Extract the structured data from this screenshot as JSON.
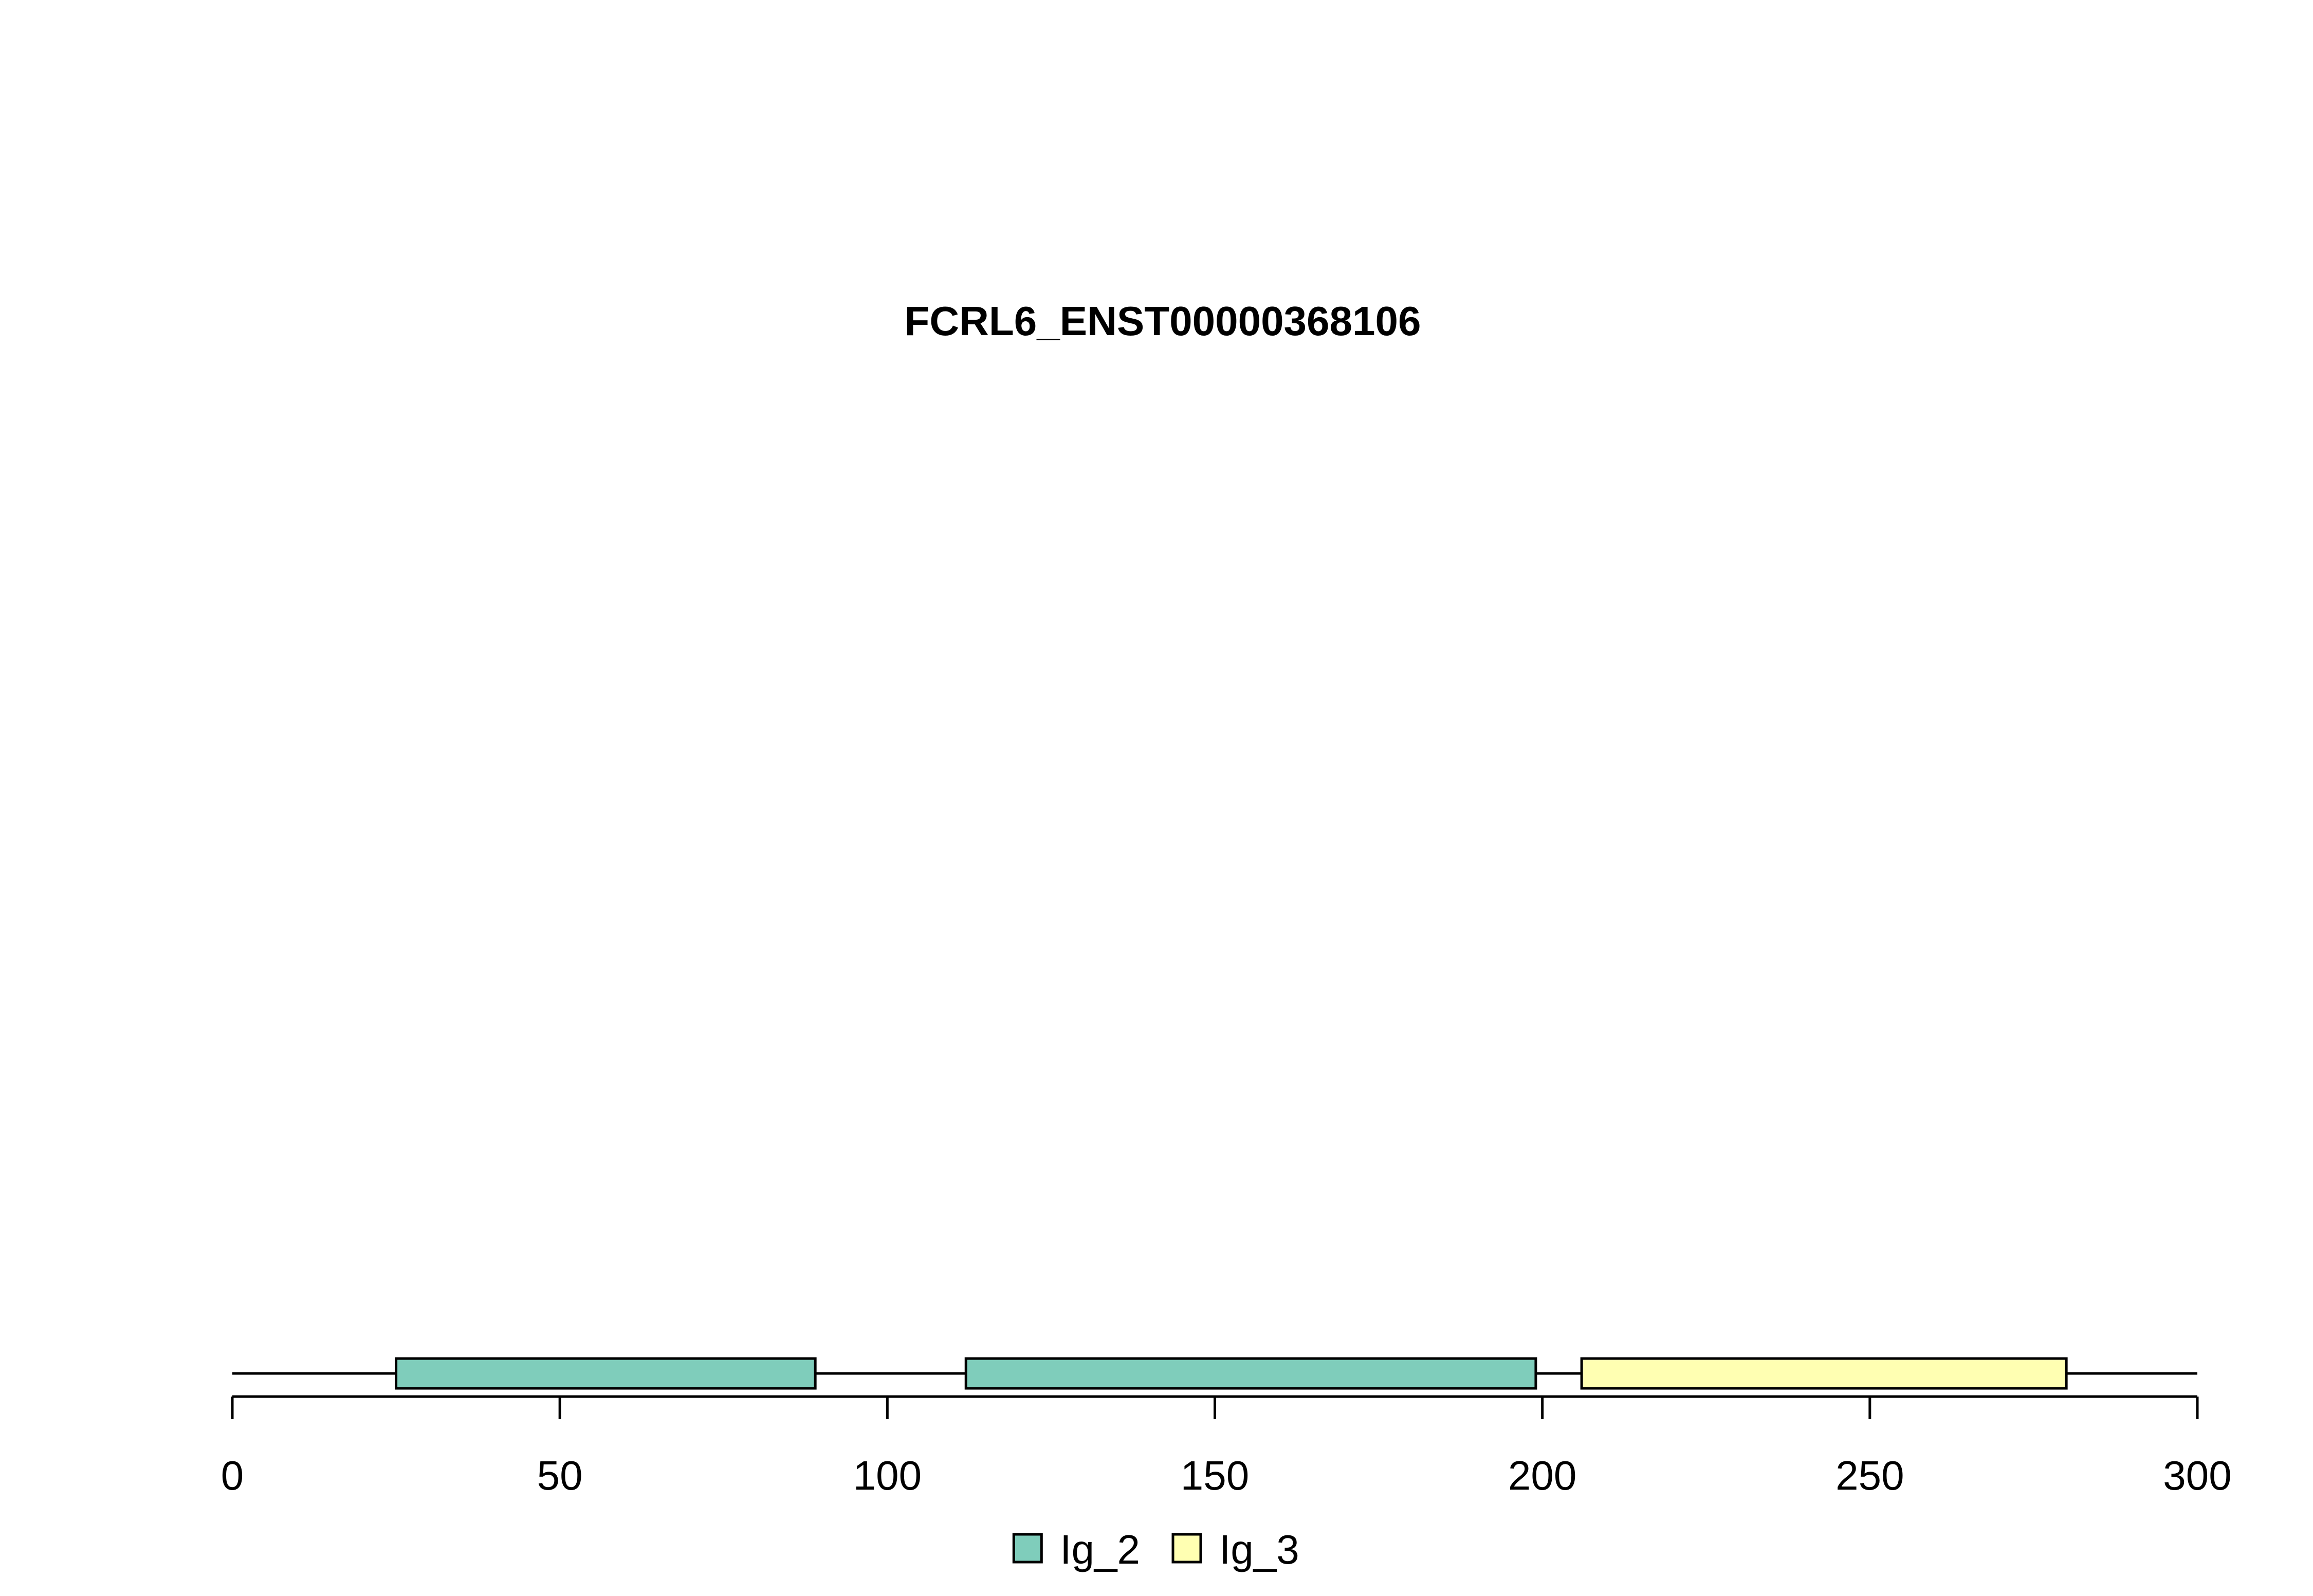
{
  "chart_data": {
    "type": "bar",
    "title": "FCRL6_ENST00000368106",
    "xlabel": "",
    "ylabel": "",
    "xlim": [
      0,
      300
    ],
    "x_ticks": [
      0,
      50,
      100,
      150,
      200,
      250,
      300
    ],
    "x_tick_labels": [
      "0",
      "50",
      "100",
      "150",
      "200",
      "250",
      "300"
    ],
    "grid": false,
    "legend_position": "bottom",
    "backbone": {
      "start": 0,
      "end": 300
    },
    "domains": [
      {
        "name": "Ig_2",
        "start": 25,
        "end": 89,
        "color": "#7fcdbb"
      },
      {
        "name": "Ig_2",
        "start": 112,
        "end": 199,
        "color": "#7fcdbb"
      },
      {
        "name": "Ig_3",
        "start": 206,
        "end": 280,
        "color": "#ffffb2"
      }
    ],
    "legend": [
      {
        "name": "Ig_2",
        "color": "#7fcdbb"
      },
      {
        "name": "Ig_3",
        "color": "#ffffb2"
      }
    ]
  }
}
